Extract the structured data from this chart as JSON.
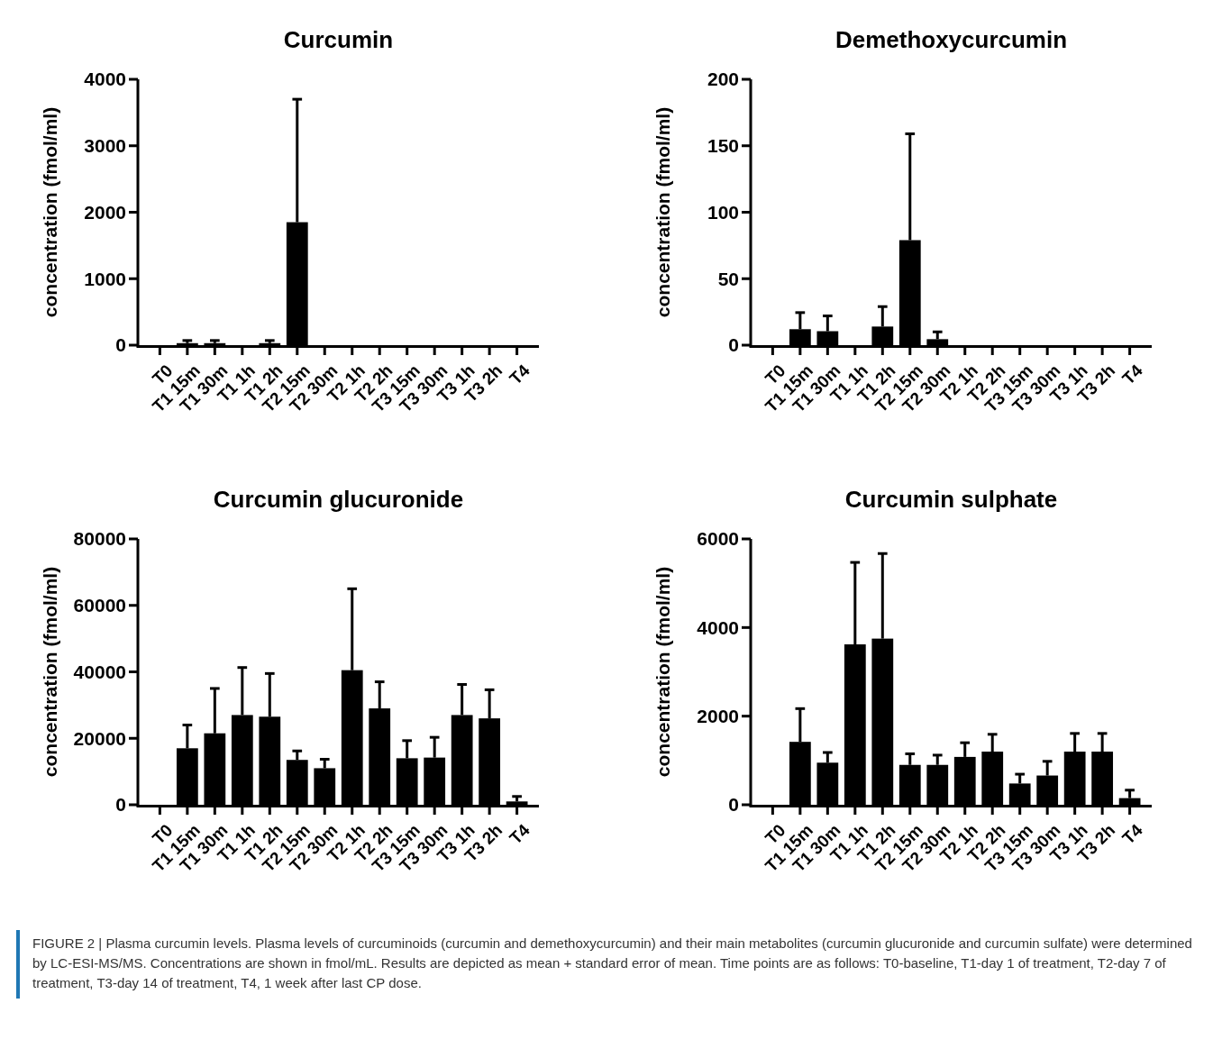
{
  "chart_data": [
    {
      "type": "bar",
      "title": "Curcumin",
      "ylabel": "concentration (fmol/ml)",
      "categories": [
        "T0",
        "T1 15m",
        "T1 30m",
        "T1 1h",
        "T1 2h",
        "T2 15m",
        "T2 30m",
        "T2 1h",
        "T2 2h",
        "T3 15m",
        "T3 30m",
        "T3 1h",
        "T3 2h",
        "T4"
      ],
      "values": [
        0,
        30,
        30,
        0,
        30,
        1850,
        0,
        0,
        0,
        0,
        0,
        0,
        0,
        0
      ],
      "errors": [
        null,
        [
          30,
          70
        ],
        [
          30,
          70
        ],
        null,
        [
          30,
          70
        ],
        [
          1850,
          3700
        ],
        null,
        null,
        null,
        null,
        null,
        null,
        null,
        null
      ],
      "color": "#000000",
      "ylim": [
        0,
        4000
      ],
      "yticks": [
        0,
        1000,
        2000,
        3000,
        4000
      ],
      "annotations": [
        "FIGURE 2 | Plasma curcumin levels. Plasma levels of curcuminoids (curcumin and demethoxycurcumin) and their main metabolites (curcumin glucuronide and curcumin sulfate) were determined by LC-ESI-MS/MS. Concentrations are shown in fmol/mL. Results are depicted as mean + standard error of mean. Time points are as follows: T0-baseline, T1-day 1 of treatment, T2-day 7 of treatment, T3-day 14 of treatment, T4, 1 week after last CP dose."
      ]
    },
    {
      "type": "bar",
      "title": "Demethoxycurcumin",
      "ylabel": "concentration (fmol/ml)",
      "categories": [
        "T0",
        "T1 15m",
        "T1 30m",
        "T1 1h",
        "T1 2h",
        "T2 15m",
        "T2 30m",
        "T2 1h",
        "T2 2h",
        "T3 15m",
        "T3 30m",
        "T3 1h",
        "T3 2h",
        "T4"
      ],
      "values": [
        0,
        12,
        10.5,
        0,
        14,
        79,
        4.5,
        0,
        0,
        0,
        0,
        0,
        0,
        0
      ],
      "errors": [
        null,
        [
          12,
          24.5
        ],
        [
          10.5,
          22
        ],
        null,
        [
          14,
          29
        ],
        [
          79,
          159
        ],
        [
          4.5,
          10
        ],
        null,
        null,
        null,
        null,
        null,
        null,
        null
      ],
      "color": "#000000",
      "ylim": [
        0,
        200
      ],
      "yticks": [
        0,
        50,
        100,
        150,
        200
      ]
    },
    {
      "type": "bar",
      "title": "Curcumin glucuronide",
      "ylabel": "concentration (fmol/ml)",
      "categories": [
        "T0",
        "T1 15m",
        "T1 30m",
        "T1 1h",
        "T1 2h",
        "T2 15m",
        "T2 30m",
        "T2 1h",
        "T2 2h",
        "T3 15m",
        "T3 30m",
        "T3 1h",
        "T3 2h",
        "T4"
      ],
      "values": [
        0,
        17000,
        21500,
        27000,
        26500,
        13500,
        11000,
        40500,
        29000,
        14000,
        14200,
        27000,
        26000,
        1000
      ],
      "errors": [
        null,
        [
          17000,
          24000
        ],
        [
          21500,
          35000
        ],
        [
          27000,
          41300
        ],
        [
          26500,
          39500
        ],
        [
          13500,
          16200
        ],
        [
          11000,
          13700
        ],
        [
          40500,
          65000
        ],
        [
          29000,
          37000
        ],
        [
          14000,
          19300
        ],
        [
          14200,
          20300
        ],
        [
          27000,
          36200
        ],
        [
          26000,
          34600
        ],
        [
          1000,
          2500
        ]
      ],
      "color": "#000000",
      "ylim": [
        0,
        80000
      ],
      "yticks": [
        0,
        20000,
        40000,
        60000,
        80000
      ]
    },
    {
      "type": "bar",
      "title": "Curcumin sulphate",
      "ylabel": "concentration (fmol/ml)",
      "categories": [
        "T0",
        "T1 15m",
        "T1 30m",
        "T1 1h",
        "T1 2h",
        "T2 15m",
        "T2 30m",
        "T2 1h",
        "T2 2h",
        "T3 15m",
        "T3 30m",
        "T3 1h",
        "T3 2h",
        "T4"
      ],
      "values": [
        0,
        1420,
        950,
        3620,
        3750,
        900,
        900,
        1080,
        1200,
        480,
        660,
        1200,
        1200,
        150
      ],
      "errors": [
        null,
        [
          1420,
          2170
        ],
        [
          950,
          1180
        ],
        [
          3620,
          5470
        ],
        [
          3750,
          5670
        ],
        [
          900,
          1150
        ],
        [
          900,
          1120
        ],
        [
          1080,
          1400
        ],
        [
          1200,
          1590
        ],
        [
          480,
          690
        ],
        [
          660,
          980
        ],
        [
          1200,
          1610
        ],
        [
          1200,
          1610
        ],
        [
          150,
          330
        ]
      ],
      "color": "#000000",
      "ylim": [
        0,
        6000
      ],
      "yticks": [
        0,
        2000,
        4000,
        6000
      ]
    }
  ]
}
